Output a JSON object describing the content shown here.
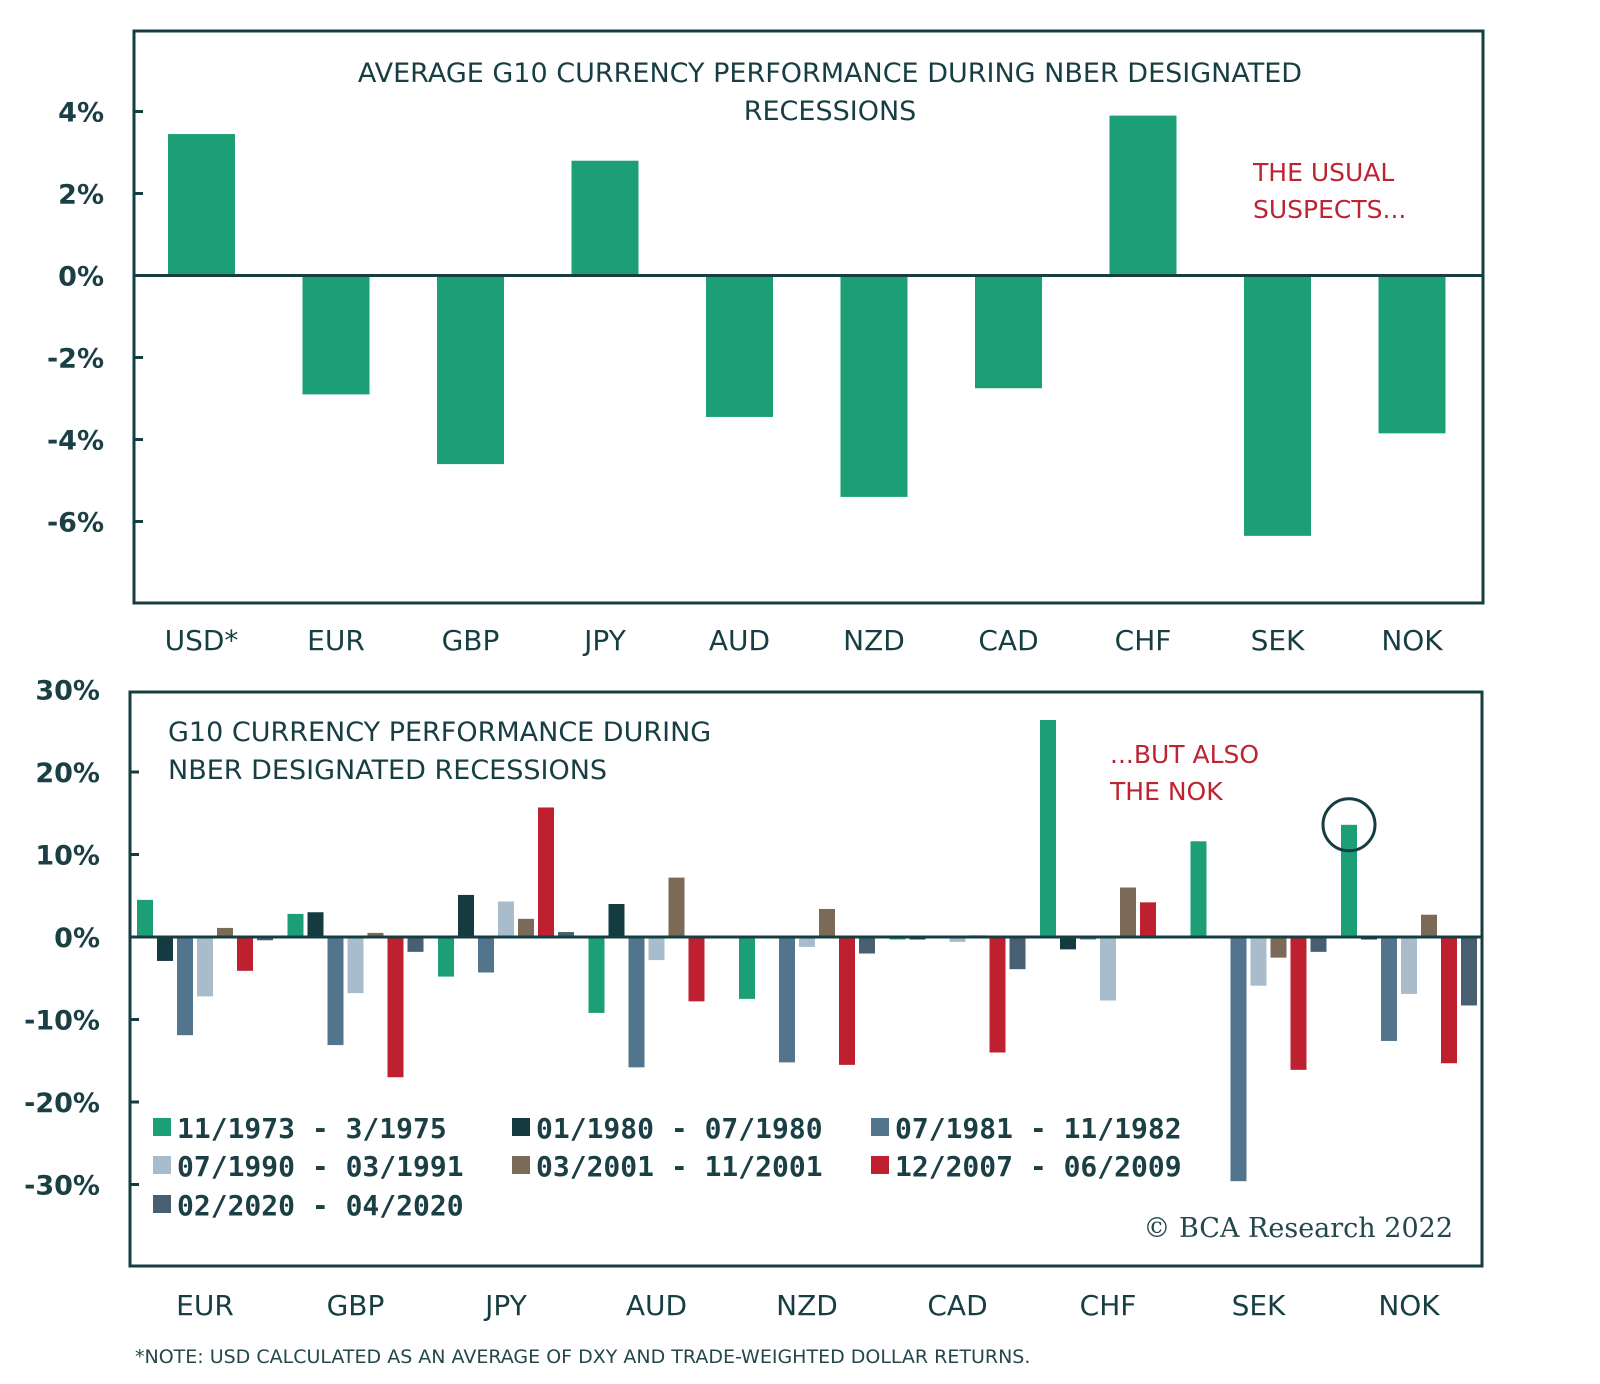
{
  "chart_data": [
    {
      "type": "bar",
      "title": "AVERAGE G10 CURRENCY PERFORMANCE DURING NBER DESIGNATED RECESSIONS",
      "title_lines": [
        "AVERAGE G10 CURRENCY PERFORMANCE DURING NBER DESIGNATED",
        "RECESSIONS"
      ],
      "categories": [
        "USD*",
        "EUR",
        "GBP",
        "JPY",
        "AUD",
        "NZD",
        "CAD",
        "CHF",
        "SEK",
        "NOK"
      ],
      "values": [
        3.45,
        -2.9,
        -4.6,
        2.8,
        -3.45,
        -5.4,
        -2.75,
        3.9,
        -6.35,
        -3.85
      ],
      "unit": "%",
      "ylim": [
        -8,
        6
      ],
      "yticks": [
        4,
        2,
        0,
        -2,
        -4,
        -6
      ],
      "ytick_labels": [
        "4%",
        "2%",
        "0%",
        "-2%",
        "-4%",
        "-6%"
      ],
      "xlabel": "",
      "ylabel": "",
      "grid": false,
      "bar_color": "#1c9f76",
      "annotation": {
        "lines": [
          "THE USUAL",
          "SUSPECTS..."
        ],
        "color": "#be2332"
      }
    },
    {
      "type": "bar",
      "title": "G10 CURRENCY PERFORMANCE DURING NBER DESIGNATED RECESSIONS",
      "title_lines": [
        "G10 CURRENCY PERFORMANCE DURING",
        "NBER DESIGNATED RECESSIONS"
      ],
      "categories": [
        "EUR",
        "GBP",
        "JPY",
        "AUD",
        "NZD",
        "CAD",
        "CHF",
        "SEK",
        "NOK"
      ],
      "series": [
        {
          "name": "11/1973 - 3/1975",
          "color": "#1c9f76",
          "values": [
            4.5,
            2.8,
            -4.8,
            -9.2,
            -7.5,
            -0.3,
            26.3,
            11.6,
            13.6
          ]
        },
        {
          "name": "01/1980 - 07/1980",
          "color": "#143b40",
          "values": [
            -2.9,
            3.0,
            5.1,
            4.0,
            0.0,
            -0.3,
            -1.5,
            0.0,
            -0.3
          ]
        },
        {
          "name": "07/1981 - 11/1982",
          "color": "#52758d",
          "values": [
            -11.9,
            -13.1,
            -4.3,
            -15.8,
            -15.2,
            0.0,
            -0.3,
            -29.6,
            -12.6
          ]
        },
        {
          "name": "07/1990 - 03/1991",
          "color": "#a9bccb",
          "values": [
            -7.2,
            -6.8,
            4.3,
            -2.8,
            -1.2,
            -0.6,
            -7.7,
            -5.9,
            -6.9
          ]
        },
        {
          "name": "03/2001 - 11/2001",
          "color": "#7b6a58",
          "values": [
            1.1,
            0.5,
            2.2,
            7.2,
            3.4,
            0.2,
            6.0,
            -2.5,
            2.7
          ]
        },
        {
          "name": "12/2007 - 06/2009",
          "color": "#be2030",
          "values": [
            -4.1,
            -17.0,
            15.7,
            -7.8,
            -15.5,
            -14.0,
            4.2,
            -16.1,
            -15.3
          ]
        },
        {
          "name": "02/2020 - 04/2020",
          "color": "#475f70",
          "values": [
            -0.4,
            -1.8,
            0.6,
            0.0,
            -2.0,
            -3.9,
            0.0,
            -1.8,
            -8.3
          ]
        }
      ],
      "unit": "%",
      "ylim": [
        -40,
        30
      ],
      "yticks": [
        30,
        20,
        10,
        0,
        -10,
        -20,
        -30
      ],
      "ytick_labels": [
        "30%",
        "20%",
        "10%",
        "0%",
        "-10%",
        "-20%",
        "-30%"
      ],
      "xlabel": "",
      "ylabel": "",
      "grid": false,
      "legend_placement": "bottom-left",
      "annotation": {
        "lines": [
          "...BUT ALSO",
          "THE NOK"
        ],
        "color": "#be2332"
      },
      "highlight": {
        "category": "NOK",
        "series": "11/1973 - 3/1975",
        "shape": "circle"
      }
    }
  ],
  "footer": {
    "note": "*NOTE: USD CALCULATED AS AN AVERAGE OF DXY AND TRADE-WEIGHTED DOLLAR RETURNS.",
    "copyright": "© BCA Research 2022"
  }
}
